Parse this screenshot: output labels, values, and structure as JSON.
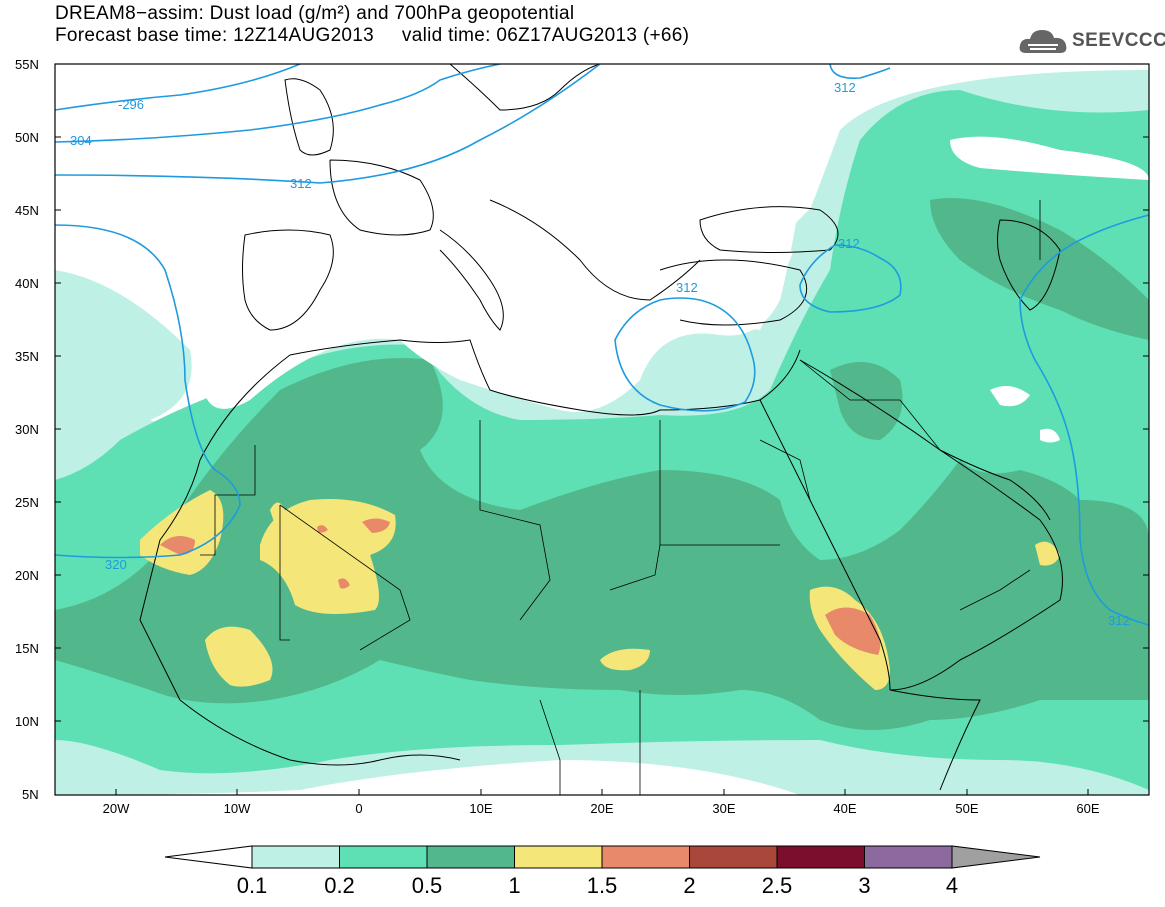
{
  "title": {
    "line1": "DREAM8−assim: Dust load (g/m²) and 700hPa geopotential",
    "line2": "Forecast base time: 12Z14AUG2013     valid time: 06Z17AUG2013 (+66)"
  },
  "logo": {
    "text": "SEEVCCC",
    "icon": "cloud-icon"
  },
  "map": {
    "lat_labels": [
      "55N",
      "50N",
      "45N",
      "40N",
      "35N",
      "30N",
      "25N",
      "20N",
      "15N",
      "10N",
      "5N"
    ],
    "lon_labels": [
      "20W",
      "10W",
      "0",
      "10E",
      "20E",
      "30E",
      "40E",
      "50E",
      "60E"
    ],
    "contour_labels": [
      "-296",
      "304",
      "312",
      "312",
      "312",
      "312",
      "320",
      "312"
    ]
  },
  "colorbar": {
    "labels": [
      "0.1",
      "0.2",
      "0.5",
      "1",
      "1.5",
      "2",
      "2.5",
      "3",
      "4"
    ],
    "colors": [
      "#bff0e6",
      "#5ee0b4",
      "#52b88c",
      "#f5e67a",
      "#e8896a",
      "#a8473a",
      "#7a0e2c",
      "#8c6aa0",
      "#a0a0a0"
    ]
  },
  "colors": {
    "contour": "#1e9be0",
    "coast": "#000000",
    "light": "#bff0e6",
    "mid": "#5ee0b4",
    "dark": "#52b88c",
    "yellow": "#f5e67a",
    "orange": "#e8896a"
  }
}
